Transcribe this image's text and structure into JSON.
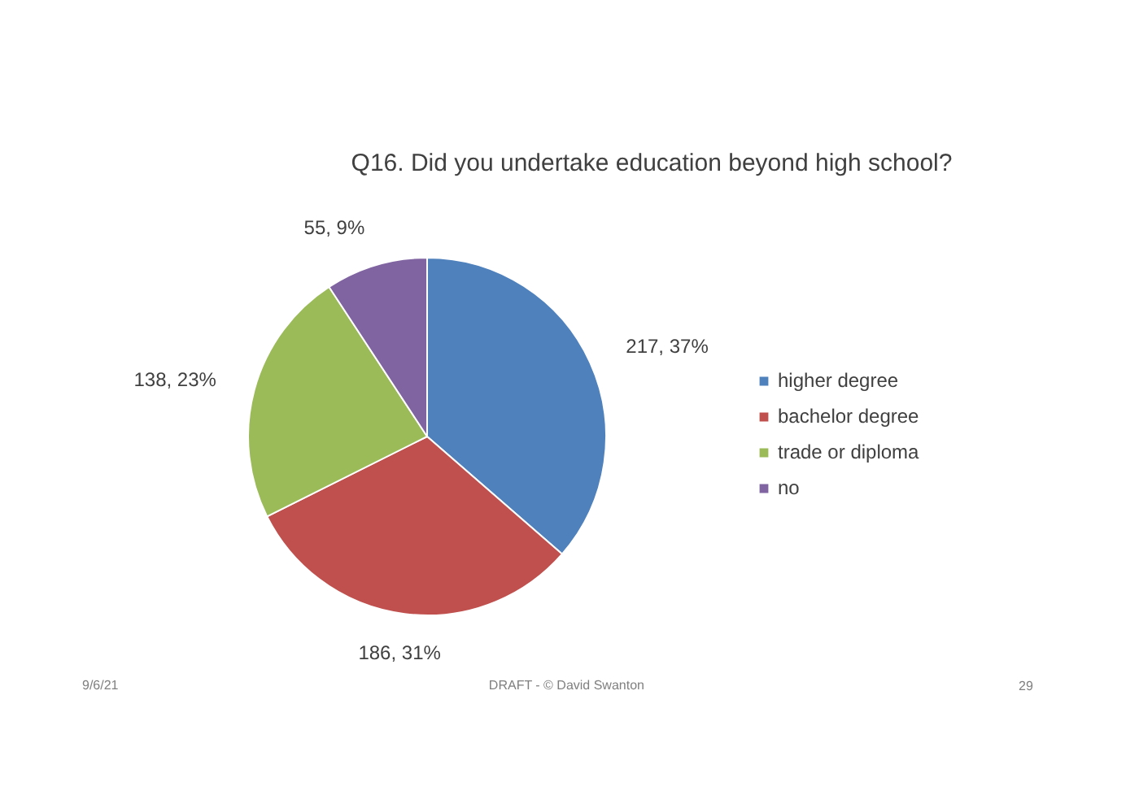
{
  "chart_data": {
    "type": "pie",
    "title": "Q16. Did you undertake education beyond high school?",
    "categories": [
      "higher degree",
      "bachelor degree",
      "trade or diploma",
      "no"
    ],
    "values": [
      217,
      186,
      138,
      55
    ],
    "colors": [
      "#4f81bd",
      "#c0504d",
      "#9bbb59",
      "#8064a2"
    ],
    "value_labels": [
      "217, 37%",
      "186, 31%",
      "138, 23%",
      "55, 9%"
    ],
    "legend": "right",
    "annotations": [
      "9/6/21",
      "DRAFT  -  © David Swanton",
      "29"
    ]
  }
}
